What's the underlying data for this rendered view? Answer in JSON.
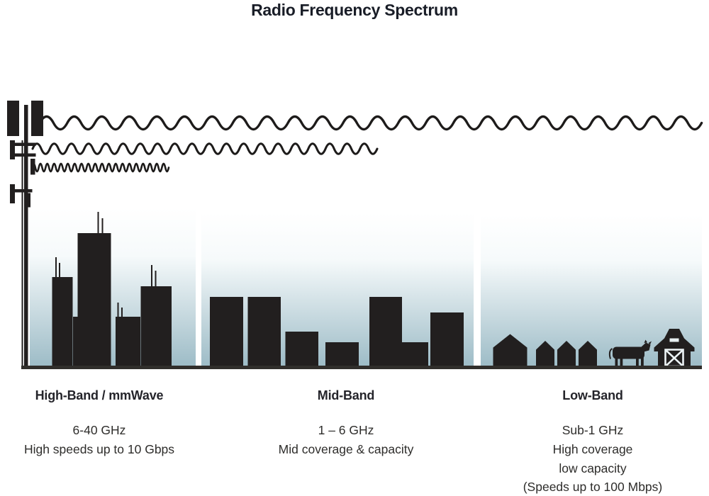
{
  "title": "Radio Frequency Spectrum",
  "bands": [
    {
      "id": "high",
      "name": "High-Band / mmWave",
      "lines": [
        "6-40 GHz",
        "High speeds up to 10 Gbps"
      ],
      "scene": "city skyscrapers with rooftop antennas"
    },
    {
      "id": "mid",
      "name": "Mid-Band",
      "lines": [
        "1 – 6 GHz",
        "Mid coverage & capacity"
      ],
      "scene": "mid-rise buildings"
    },
    {
      "id": "low",
      "name": "Low-Band",
      "lines": [
        "Sub-1 GHz",
        "High coverage",
        "low capacity",
        "(Speeds up to 100 Mbps)"
      ],
      "scene": "rural houses, cow and barn"
    }
  ],
  "waves": [
    {
      "band": "Low-Band",
      "wavelength": "long",
      "reach": "longest - spans full diagram"
    },
    {
      "band": "Mid-Band",
      "wavelength": "medium",
      "reach": "medium - reaches mid-band zone"
    },
    {
      "band": "High-Band / mmWave",
      "wavelength": "short",
      "reach": "shortest - near tower only"
    }
  ],
  "icons": {
    "tower": "cell-tower",
    "top_wave": "long-wavelength-wave",
    "middle_wave": "medium-wavelength-wave",
    "bottom_wave": "short-wavelength-wave",
    "high_scene": "skyscraper-skyline",
    "mid_scene": "building-skyline",
    "low_scene": "houses-cow-barn"
  },
  "colors": {
    "silhouette": "#221f1f",
    "stroke": "#1d1b1a",
    "sky_top": "#ffffff",
    "sky_bottom": "#9cbbc6",
    "ground": "#302e2b",
    "text": "#2e2d2b",
    "title": "#191d27"
  }
}
